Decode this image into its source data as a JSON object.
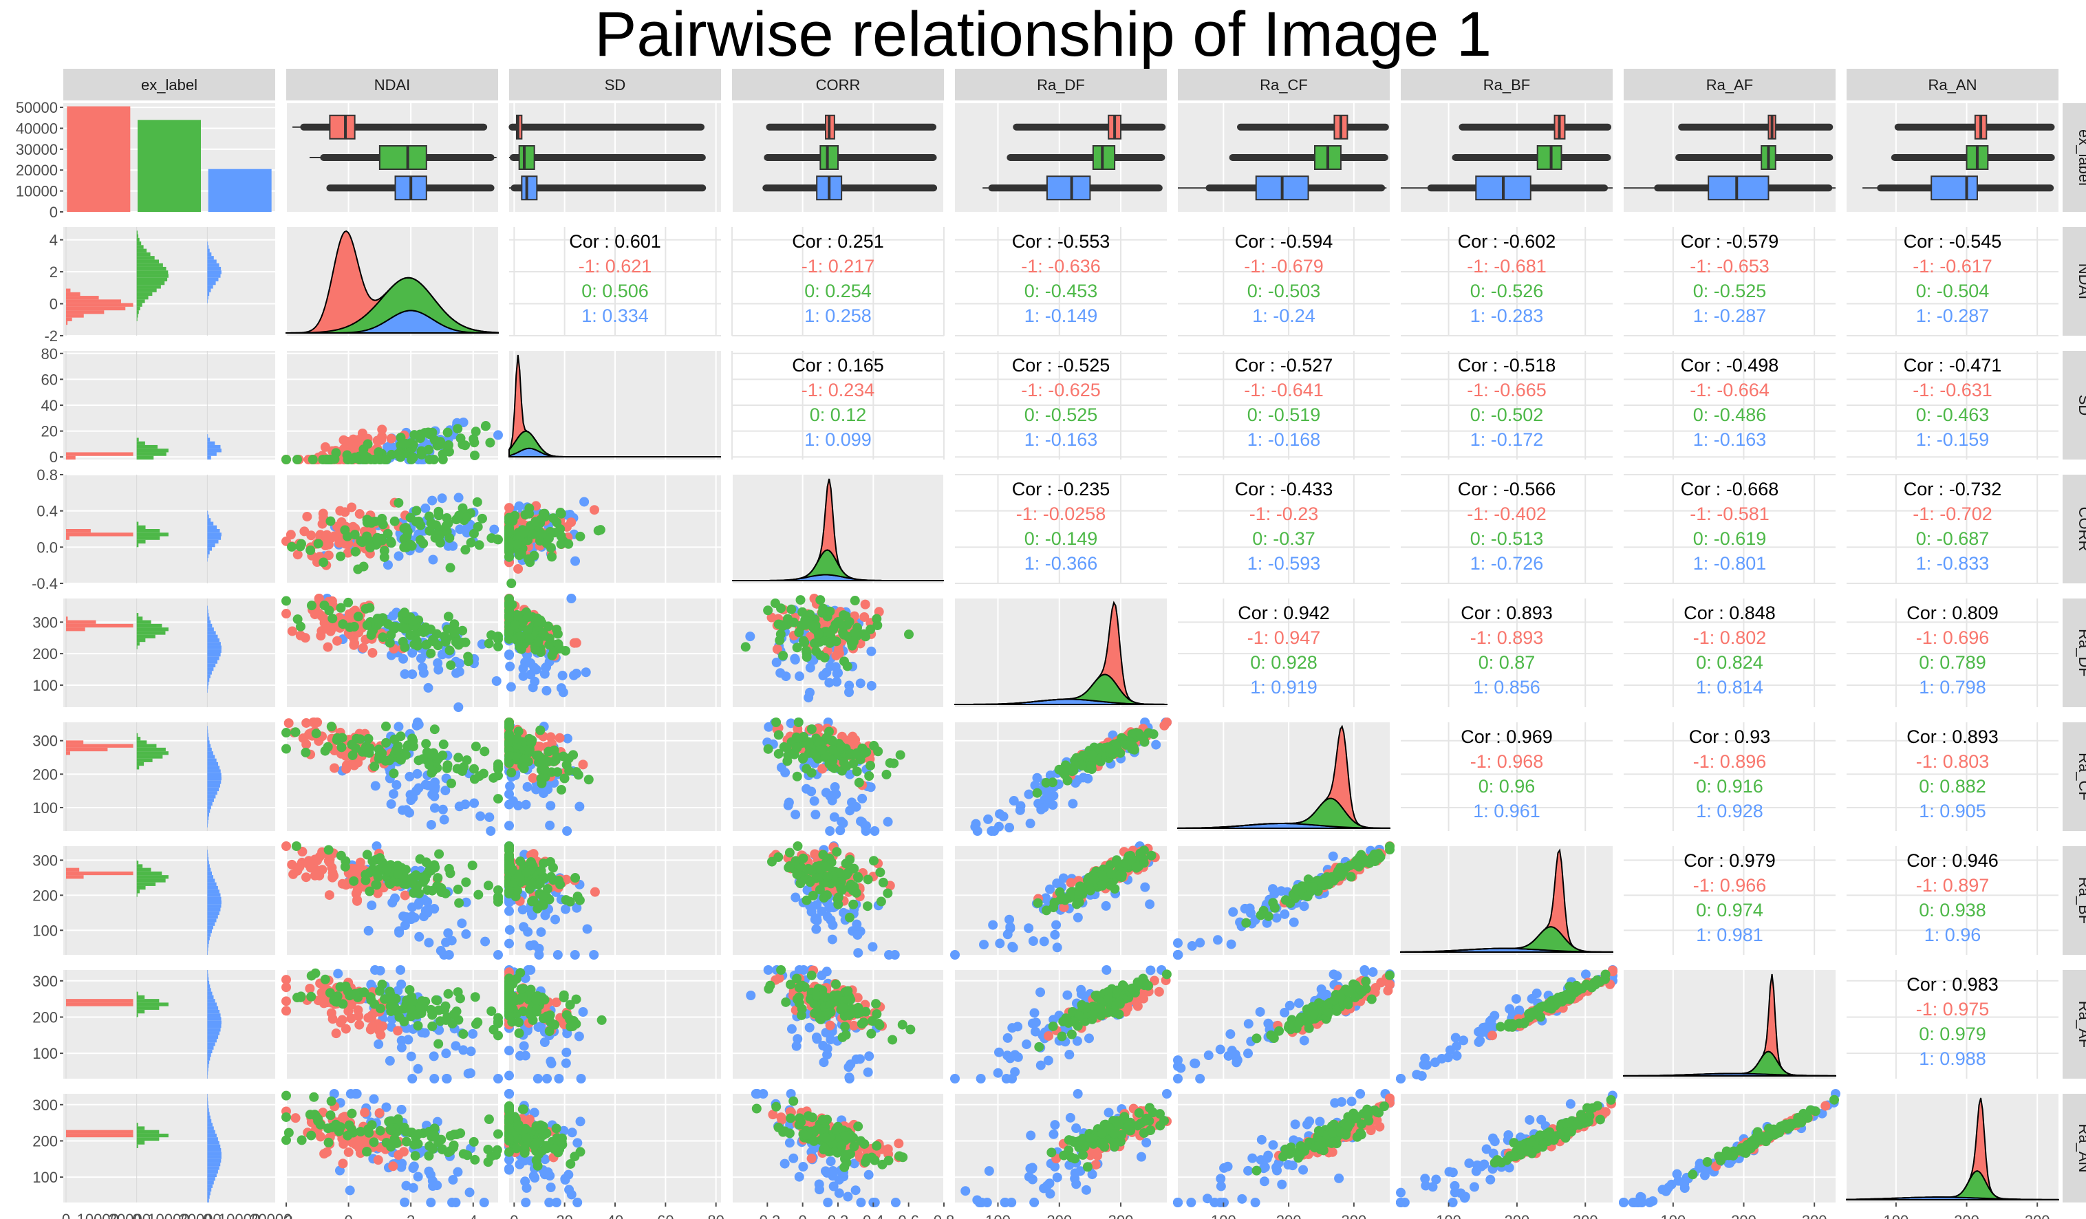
{
  "title": "Pairwise relationship of Image 1",
  "variables": [
    "ex_label",
    "NDAI",
    "SD",
    "CORR",
    "Ra_DF",
    "Ra_CF",
    "Ra_BF",
    "Ra_AF",
    "Ra_AN"
  ],
  "colors": {
    "-1": "#F8766D",
    "0": "#4DB848",
    "1": "#619CFF",
    "panel_bg": "#EBEBEB",
    "grid": "#FFFFFF",
    "strip_bg": "#D9D9D9"
  },
  "chart_data": {
    "type": "pairs-matrix",
    "title": "Pairwise relationship of Image 1",
    "groups": [
      "-1",
      "0",
      "1"
    ],
    "label_counts": {
      "categories": [
        "-1",
        "0",
        "1"
      ],
      "values": [
        50500,
        44000,
        20500
      ],
      "ylim": [
        0,
        52000
      ]
    },
    "axes": {
      "ex_label": {
        "ticks": [
          "0",
          "10000",
          "20000",
          "30000",
          "40000",
          "50000"
        ]
      },
      "NDAI": {
        "range": [
          -2.0,
          4.8
        ],
        "ticks": [
          -2,
          0,
          2,
          4
        ]
      },
      "SD": {
        "range": [
          -2,
          82
        ],
        "ticks": [
          0,
          20,
          40,
          60,
          80
        ]
      },
      "CORR": {
        "range": [
          -0.4,
          0.8
        ],
        "ticks": [
          -0.4,
          0.0,
          0.4,
          0.8
        ],
        "xticks": [
          -0.2,
          0.0,
          0.2,
          0.4,
          0.6,
          0.8
        ]
      },
      "Ra_DF": {
        "range": [
          30,
          375
        ],
        "ticks": [
          100,
          200,
          300
        ]
      },
      "Ra_CF": {
        "range": [
          30,
          355
        ],
        "ticks": [
          100,
          200,
          300
        ]
      },
      "Ra_BF": {
        "range": [
          30,
          340
        ],
        "ticks": [
          100,
          200,
          300
        ]
      },
      "Ra_AF": {
        "range": [
          30,
          330
        ],
        "ticks": [
          100,
          200,
          300
        ]
      },
      "Ra_AN": {
        "range": [
          30,
          330
        ],
        "ticks": [
          100,
          200,
          300
        ]
      }
    },
    "boxplots": {
      "NDAI": [
        {
          "g": "-1",
          "q1": -0.6,
          "med": -0.1,
          "q3": 0.2
        },
        {
          "g": "0",
          "q1": 1.0,
          "med": 1.9,
          "q3": 2.5
        },
        {
          "g": "1",
          "q1": 1.5,
          "med": 2.0,
          "q3": 2.5
        }
      ],
      "SD": [
        {
          "g": "-1",
          "q1": 1.0,
          "med": 1.5,
          "q3": 3.0
        },
        {
          "g": "0",
          "q1": 2.0,
          "med": 4.0,
          "q3": 8.0
        },
        {
          "g": "1",
          "q1": 3.0,
          "med": 5.0,
          "q3": 9.0
        }
      ],
      "CORR": [
        {
          "g": "-1",
          "q1": 0.13,
          "med": 0.15,
          "q3": 0.18
        },
        {
          "g": "0",
          "q1": 0.1,
          "med": 0.14,
          "q3": 0.2
        },
        {
          "g": "1",
          "q1": 0.08,
          "med": 0.15,
          "q3": 0.22
        }
      ],
      "Ra_DF": [
        {
          "g": "-1",
          "q1": 280,
          "med": 290,
          "q3": 300
        },
        {
          "g": "0",
          "q1": 255,
          "med": 270,
          "q3": 290
        },
        {
          "g": "1",
          "q1": 180,
          "med": 220,
          "q3": 250
        }
      ],
      "Ra_CF": [
        {
          "g": "-1",
          "q1": 270,
          "med": 280,
          "q3": 290
        },
        {
          "g": "0",
          "q1": 240,
          "med": 260,
          "q3": 280
        },
        {
          "g": "1",
          "q1": 150,
          "med": 190,
          "q3": 230
        }
      ],
      "Ra_BF": [
        {
          "g": "-1",
          "q1": 255,
          "med": 262,
          "q3": 270
        },
        {
          "g": "0",
          "q1": 230,
          "med": 250,
          "q3": 265
        },
        {
          "g": "1",
          "q1": 140,
          "med": 180,
          "q3": 220
        }
      ],
      "Ra_AF": [
        {
          "g": "-1",
          "q1": 235,
          "med": 240,
          "q3": 245
        },
        {
          "g": "0",
          "q1": 225,
          "med": 235,
          "q3": 245
        },
        {
          "g": "1",
          "q1": 150,
          "med": 190,
          "q3": 235
        }
      ],
      "Ra_AN": [
        {
          "g": "-1",
          "q1": 212,
          "med": 220,
          "q3": 228
        },
        {
          "g": "0",
          "q1": 200,
          "med": 215,
          "q3": 230
        },
        {
          "g": "1",
          "q1": 150,
          "med": 200,
          "q3": 215
        }
      ]
    },
    "correlations": [
      {
        "row": "NDAI",
        "col": "SD",
        "overall": "Cor : 0.601",
        "-1": "-1: 0.621",
        "0": "0: 0.506",
        "1": "1: 0.334"
      },
      {
        "row": "NDAI",
        "col": "CORR",
        "overall": "Cor : 0.251",
        "-1": "-1: 0.217",
        "0": "0: 0.254",
        "1": "1: 0.258"
      },
      {
        "row": "NDAI",
        "col": "Ra_DF",
        "overall": "Cor : -0.553",
        "-1": "-1: -0.636",
        "0": "0: -0.453",
        "1": "1: -0.149"
      },
      {
        "row": "NDAI",
        "col": "Ra_CF",
        "overall": "Cor : -0.594",
        "-1": "-1: -0.679",
        "0": "0: -0.503",
        "1": "1: -0.24"
      },
      {
        "row": "NDAI",
        "col": "Ra_BF",
        "overall": "Cor : -0.602",
        "-1": "-1: -0.681",
        "0": "0: -0.526",
        "1": "1: -0.283"
      },
      {
        "row": "NDAI",
        "col": "Ra_AF",
        "overall": "Cor : -0.579",
        "-1": "-1: -0.653",
        "0": "0: -0.525",
        "1": "1: -0.287"
      },
      {
        "row": "NDAI",
        "col": "Ra_AN",
        "overall": "Cor : -0.545",
        "-1": "-1: -0.617",
        "0": "0: -0.504",
        "1": "1: -0.287"
      },
      {
        "row": "SD",
        "col": "CORR",
        "overall": "Cor : 0.165",
        "-1": "-1: 0.234",
        "0": "0: 0.12",
        "1": "1: 0.099"
      },
      {
        "row": "SD",
        "col": "Ra_DF",
        "overall": "Cor : -0.525",
        "-1": "-1: -0.625",
        "0": "0: -0.525",
        "1": "1: -0.163"
      },
      {
        "row": "SD",
        "col": "Ra_CF",
        "overall": "Cor : -0.527",
        "-1": "-1: -0.641",
        "0": "0: -0.519",
        "1": "1: -0.168"
      },
      {
        "row": "SD",
        "col": "Ra_BF",
        "overall": "Cor : -0.518",
        "-1": "-1: -0.665",
        "0": "0: -0.502",
        "1": "1: -0.172"
      },
      {
        "row": "SD",
        "col": "Ra_AF",
        "overall": "Cor : -0.498",
        "-1": "-1: -0.664",
        "0": "0: -0.486",
        "1": "1: -0.163"
      },
      {
        "row": "SD",
        "col": "Ra_AN",
        "overall": "Cor : -0.471",
        "-1": "-1: -0.631",
        "0": "0: -0.463",
        "1": "1: -0.159"
      },
      {
        "row": "CORR",
        "col": "Ra_DF",
        "overall": "Cor : -0.235",
        "-1": "-1: -0.0258",
        "0": "0: -0.149",
        "1": "1: -0.366"
      },
      {
        "row": "CORR",
        "col": "Ra_CF",
        "overall": "Cor : -0.433",
        "-1": "-1: -0.23",
        "0": "0: -0.37",
        "1": "1: -0.593"
      },
      {
        "row": "CORR",
        "col": "Ra_BF",
        "overall": "Cor : -0.566",
        "-1": "-1: -0.402",
        "0": "0: -0.513",
        "1": "1: -0.726"
      },
      {
        "row": "CORR",
        "col": "Ra_AF",
        "overall": "Cor : -0.668",
        "-1": "-1: -0.581",
        "0": "0: -0.619",
        "1": "1: -0.801"
      },
      {
        "row": "CORR",
        "col": "Ra_AN",
        "overall": "Cor : -0.732",
        "-1": "-1: -0.702",
        "0": "0: -0.687",
        "1": "1: -0.833"
      },
      {
        "row": "Ra_DF",
        "col": "Ra_CF",
        "overall": "Cor : 0.942",
        "-1": "-1: 0.947",
        "0": "0: 0.928",
        "1": "1: 0.919"
      },
      {
        "row": "Ra_DF",
        "col": "Ra_BF",
        "overall": "Cor : 0.893",
        "-1": "-1: 0.893",
        "0": "0: 0.87",
        "1": "1: 0.856"
      },
      {
        "row": "Ra_DF",
        "col": "Ra_AF",
        "overall": "Cor : 0.848",
        "-1": "-1: 0.802",
        "0": "0: 0.824",
        "1": "1: 0.814"
      },
      {
        "row": "Ra_DF",
        "col": "Ra_AN",
        "overall": "Cor : 0.809",
        "-1": "-1: 0.696",
        "0": "0: 0.789",
        "1": "1: 0.798"
      },
      {
        "row": "Ra_CF",
        "col": "Ra_BF",
        "overall": "Cor : 0.969",
        "-1": "-1: 0.968",
        "0": "0: 0.96",
        "1": "1: 0.961"
      },
      {
        "row": "Ra_CF",
        "col": "Ra_AF",
        "overall": "Cor : 0.93",
        "-1": "-1: 0.896",
        "0": "0: 0.916",
        "1": "1: 0.928"
      },
      {
        "row": "Ra_CF",
        "col": "Ra_AN",
        "overall": "Cor : 0.893",
        "-1": "-1: 0.803",
        "0": "0: 0.882",
        "1": "1: 0.905"
      },
      {
        "row": "Ra_BF",
        "col": "Ra_AF",
        "overall": "Cor : 0.979",
        "-1": "-1: 0.966",
        "0": "0: 0.974",
        "1": "1: 0.981"
      },
      {
        "row": "Ra_BF",
        "col": "Ra_AN",
        "overall": "Cor : 0.946",
        "-1": "-1: 0.897",
        "0": "0: 0.938",
        "1": "1: 0.96"
      },
      {
        "row": "Ra_AF",
        "col": "Ra_AN",
        "overall": "Cor : 0.983",
        "-1": "-1: 0.975",
        "0": "0: 0.979",
        "1": "1: 0.988"
      }
    ],
    "densities": {
      "NDAI": [
        {
          "g": "-1",
          "mu": -0.1,
          "sd": 0.4
        },
        {
          "g": "0",
          "mu": 1.8,
          "sd": 1.0
        },
        {
          "g": "1",
          "mu": 2.0,
          "sd": 0.7
        }
      ],
      "SD": [
        {
          "g": "-1",
          "mu": 1.5,
          "sd": 1.0
        },
        {
          "g": "0",
          "mu": 4.0,
          "sd": 4.0
        },
        {
          "g": "1",
          "mu": 6.0,
          "sd": 4.0
        }
      ],
      "CORR": [
        {
          "g": "-1",
          "mu": 0.15,
          "sd": 0.02
        },
        {
          "g": "0",
          "mu": 0.14,
          "sd": 0.05
        },
        {
          "g": "1",
          "mu": 0.13,
          "sd": 0.1
        }
      ],
      "Ra_DF": [
        {
          "g": "-1",
          "mu": 290,
          "sd": 8
        },
        {
          "g": "0",
          "mu": 275,
          "sd": 20
        },
        {
          "g": "1",
          "mu": 215,
          "sd": 50
        }
      ],
      "Ra_CF": [
        {
          "g": "-1",
          "mu": 282,
          "sd": 8
        },
        {
          "g": "0",
          "mu": 265,
          "sd": 20
        },
        {
          "g": "1",
          "mu": 190,
          "sd": 55
        }
      ],
      "Ra_BF": [
        {
          "g": "-1",
          "mu": 262,
          "sd": 6
        },
        {
          "g": "0",
          "mu": 250,
          "sd": 18
        },
        {
          "g": "1",
          "mu": 180,
          "sd": 55
        }
      ],
      "Ra_AF": [
        {
          "g": "-1",
          "mu": 240,
          "sd": 4
        },
        {
          "g": "0",
          "mu": 235,
          "sd": 12
        },
        {
          "g": "1",
          "mu": 185,
          "sd": 55
        }
      ],
      "Ra_AN": [
        {
          "g": "-1",
          "mu": 220,
          "sd": 5
        },
        {
          "g": "0",
          "mu": 215,
          "sd": 12
        },
        {
          "g": "1",
          "mu": 160,
          "sd": 60
        }
      ]
    }
  }
}
